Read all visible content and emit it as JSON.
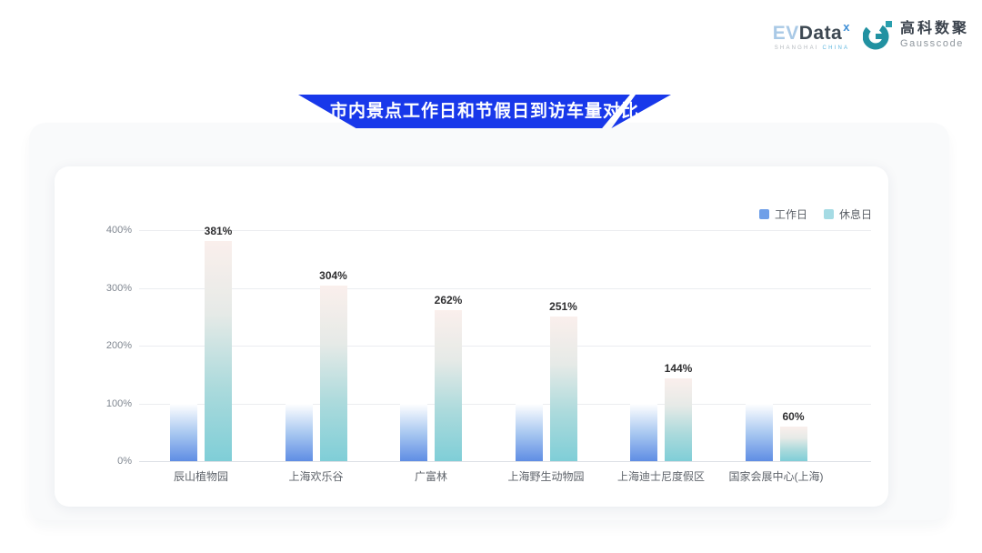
{
  "header": {
    "evdata_logo": {
      "part_ev": "EV",
      "part_data": "Data",
      "superscript": "x",
      "sub_left": "SHANGHAI",
      "sub_right": "CHINA"
    },
    "gausscode_logo": {
      "cn_name": "高科数聚",
      "en_name": "Gausscode",
      "icon_color": "#2191a1"
    }
  },
  "banner": {
    "title": "市内景点工作日和节假日到访车量对比",
    "color": "#1838ea"
  },
  "chart_data": {
    "type": "bar",
    "title": "市内景点工作日和节假日到访车量对比",
    "categories": [
      "辰山植物园",
      "上海欢乐谷",
      "广富林",
      "上海野生动物园",
      "上海迪士尼度假区",
      "国家会展中心(上海)"
    ],
    "series": [
      {
        "name": "工作日",
        "values": [
          100,
          100,
          100,
          100,
          100,
          100
        ],
        "labels": null,
        "legend_color": "#6f9fe8",
        "gradient_stops": [
          "#ffffff",
          "#aac9f1",
          "#5f8de4"
        ]
      },
      {
        "name": "休息日",
        "values": [
          381,
          304,
          262,
          251,
          144,
          60
        ],
        "labels": [
          "381%",
          "304%",
          "262%",
          "251%",
          "144%",
          "60%"
        ],
        "legend_color": "#a5dbe4",
        "gradient_stops": [
          "#faefec",
          "#e6eae7",
          "#abdadc",
          "#7fced7"
        ]
      }
    ],
    "xlabel": "",
    "ylabel": "",
    "yticks": [
      "0%",
      "100%",
      "200%",
      "300%",
      "400%"
    ],
    "ylim": [
      0,
      400
    ],
    "grid": true,
    "legend_position": "top-right"
  }
}
